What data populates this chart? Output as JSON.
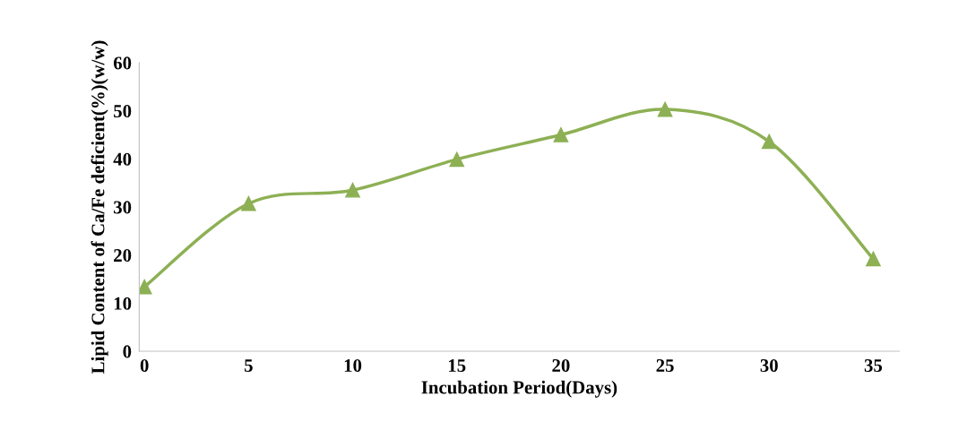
{
  "chart_data": {
    "type": "line",
    "xlabel": "Incubation Period(Days)",
    "ylabel": "Lipid Content of Ca/Fe deficient(%)(w/w)",
    "categories": [
      "0",
      "5",
      "10",
      "15",
      "20",
      "25",
      "30",
      "35"
    ],
    "series": [
      {
        "color": "#8db054",
        "values": [
          13.4,
          30.7,
          33.5,
          39.9,
          45,
          50.3,
          43.6,
          19.2
        ]
      }
    ],
    "ylim": [
      0,
      60
    ],
    "yticks": [
      0,
      10,
      20,
      30,
      40,
      50,
      60
    ],
    "marker": "triangle",
    "grid": false
  }
}
